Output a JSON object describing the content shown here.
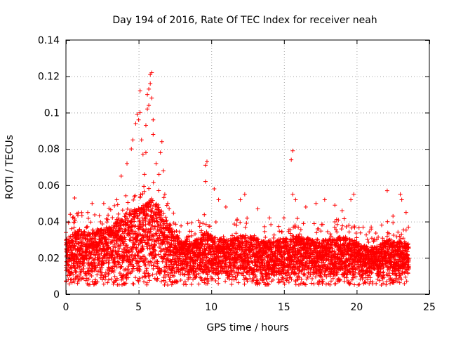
{
  "chart_data": {
    "type": "scatter",
    "title": "Day 194 of 2016, Rate Of TEC Index for receiver neah",
    "xlabel": "GPS time / hours",
    "ylabel": "ROTI / TECUs",
    "xlim": [
      0,
      25
    ],
    "ylim": [
      0,
      0.14
    ],
    "xticks": [
      0,
      5,
      10,
      15,
      20,
      25
    ],
    "yticks": [
      0,
      0.02,
      0.04,
      0.06,
      0.08,
      0.1,
      0.12,
      0.14
    ],
    "xtick_labels": [
      "0",
      "5",
      "10",
      "15",
      "20",
      "25"
    ],
    "ytick_labels": [
      "0",
      "0.02",
      "0.04",
      "0.06",
      "0.08",
      "0.1",
      "0.12",
      "0.14"
    ],
    "grid": true,
    "marker": "plus",
    "color": "#ff0000",
    "series": [
      {
        "name": "ROTI",
        "band_upper": [
          [
            0.0,
            0.03
          ],
          [
            0.5,
            0.034
          ],
          [
            1.0,
            0.036
          ],
          [
            1.5,
            0.034
          ],
          [
            2.0,
            0.035
          ],
          [
            2.5,
            0.036
          ],
          [
            3.0,
            0.038
          ],
          [
            3.5,
            0.04
          ],
          [
            4.0,
            0.044
          ],
          [
            4.5,
            0.046
          ],
          [
            5.0,
            0.048
          ],
          [
            5.5,
            0.05
          ],
          [
            6.0,
            0.052
          ],
          [
            6.5,
            0.048
          ],
          [
            7.0,
            0.04
          ],
          [
            7.5,
            0.034
          ],
          [
            8.0,
            0.03
          ],
          [
            8.5,
            0.029
          ],
          [
            9.0,
            0.03
          ],
          [
            9.5,
            0.034
          ],
          [
            10.0,
            0.033
          ],
          [
            10.5,
            0.031
          ],
          [
            11.0,
            0.03
          ],
          [
            11.5,
            0.031
          ],
          [
            12.0,
            0.032
          ],
          [
            12.5,
            0.033
          ],
          [
            13.0,
            0.031
          ],
          [
            13.5,
            0.03
          ],
          [
            14.0,
            0.029
          ],
          [
            14.5,
            0.03
          ],
          [
            15.0,
            0.031
          ],
          [
            15.5,
            0.033
          ],
          [
            16.0,
            0.032
          ],
          [
            16.5,
            0.031
          ],
          [
            17.0,
            0.03
          ],
          [
            17.5,
            0.03
          ],
          [
            18.0,
            0.03
          ],
          [
            18.5,
            0.031
          ],
          [
            19.0,
            0.032
          ],
          [
            19.5,
            0.031
          ],
          [
            20.0,
            0.029
          ],
          [
            20.5,
            0.027
          ],
          [
            21.0,
            0.026
          ],
          [
            21.5,
            0.027
          ],
          [
            22.0,
            0.03
          ],
          [
            22.5,
            0.03
          ],
          [
            23.0,
            0.029
          ],
          [
            23.6,
            0.028
          ]
        ],
        "band_lower": 0.01,
        "highlights": [
          [
            0.0,
            0.034
          ],
          [
            0.3,
            0.044
          ],
          [
            0.6,
            0.053
          ],
          [
            1.5,
            0.045
          ],
          [
            1.8,
            0.05
          ],
          [
            2.6,
            0.05
          ],
          [
            3.5,
            0.052
          ],
          [
            3.8,
            0.065
          ],
          [
            4.2,
            0.072
          ],
          [
            4.5,
            0.08
          ],
          [
            4.6,
            0.085
          ],
          [
            4.8,
            0.094
          ],
          [
            4.9,
            0.099
          ],
          [
            5.0,
            0.096
          ],
          [
            5.1,
            0.1
          ],
          [
            5.1,
            0.112
          ],
          [
            5.2,
            0.085
          ],
          [
            5.3,
            0.077
          ],
          [
            5.4,
            0.066
          ],
          [
            5.5,
            0.078
          ],
          [
            5.5,
            0.093
          ],
          [
            5.6,
            0.102
          ],
          [
            5.6,
            0.11
          ],
          [
            5.7,
            0.104
          ],
          [
            5.7,
            0.113
          ],
          [
            5.8,
            0.116
          ],
          [
            5.8,
            0.121
          ],
          [
            5.9,
            0.122
          ],
          [
            5.9,
            0.108
          ],
          [
            6.0,
            0.096
          ],
          [
            6.0,
            0.088
          ],
          [
            6.2,
            0.072
          ],
          [
            6.4,
            0.066
          ],
          [
            6.5,
            0.078
          ],
          [
            6.6,
            0.084
          ],
          [
            6.7,
            0.068
          ],
          [
            6.8,
            0.055
          ],
          [
            7.0,
            0.05
          ],
          [
            9.6,
            0.071
          ],
          [
            9.7,
            0.073
          ],
          [
            9.6,
            0.062
          ],
          [
            10.2,
            0.058
          ],
          [
            10.5,
            0.052
          ],
          [
            11.0,
            0.048
          ],
          [
            12.0,
            0.052
          ],
          [
            12.3,
            0.055
          ],
          [
            13.2,
            0.047
          ],
          [
            14.0,
            0.042
          ],
          [
            15.0,
            0.042
          ],
          [
            15.5,
            0.074
          ],
          [
            15.6,
            0.079
          ],
          [
            15.6,
            0.055
          ],
          [
            15.8,
            0.052
          ],
          [
            16.5,
            0.048
          ],
          [
            17.2,
            0.05
          ],
          [
            17.8,
            0.052
          ],
          [
            18.5,
            0.049
          ],
          [
            19.0,
            0.046
          ],
          [
            19.6,
            0.052
          ],
          [
            19.8,
            0.055
          ],
          [
            21.0,
            0.037
          ],
          [
            22.1,
            0.057
          ],
          [
            22.5,
            0.043
          ],
          [
            23.0,
            0.055
          ],
          [
            23.1,
            0.052
          ],
          [
            23.4,
            0.045
          ]
        ]
      }
    ]
  }
}
